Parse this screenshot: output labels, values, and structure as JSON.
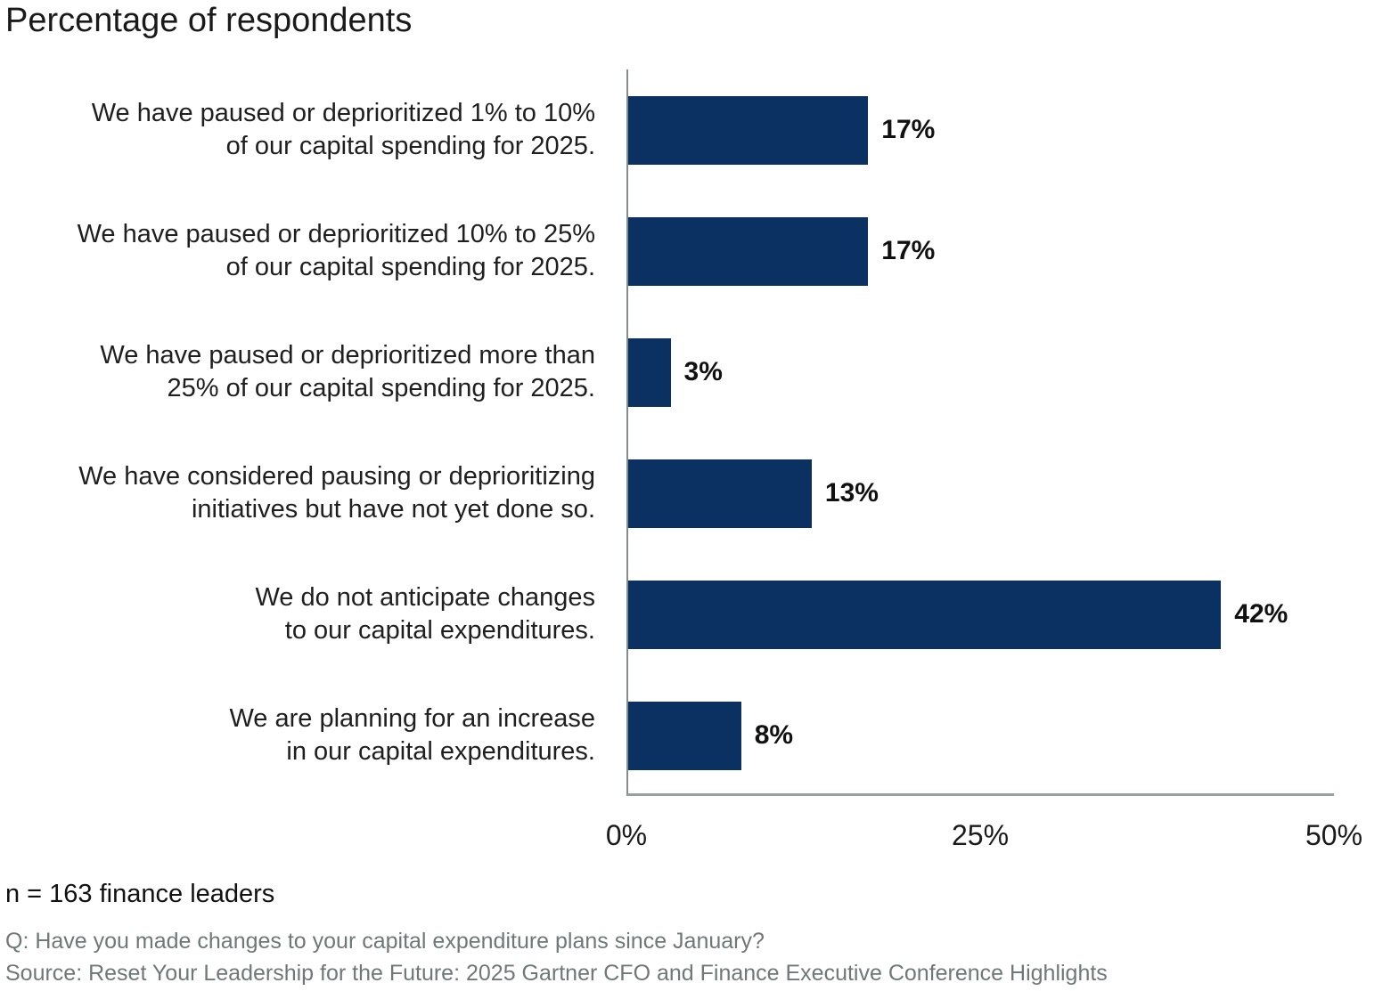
{
  "title": "Percentage of respondents",
  "colors": {
    "bar": "#0a3161",
    "axis": "#8e9696",
    "footnote_gray": "#6f7877",
    "text": "#1a1a1a"
  },
  "chart_data": {
    "type": "bar",
    "orientation": "horizontal",
    "title": "Percentage of respondents",
    "xlabel": "",
    "ylabel": "",
    "xlim": [
      0,
      50
    ],
    "grid": false,
    "legend": false,
    "categories": [
      "We have paused or deprioritized 1% to 10% of our capital spending for 2025.",
      "We have paused or deprioritized 10% to 25% of our capital spending for 2025.",
      "We have paused or deprioritized more than 25% of our capital spending for 2025.",
      "We have considered pausing or deprioritizing initiatives but have not yet done so.",
      "We do not anticipate changes to our capital expenditures.",
      "We are planning for an increase in our capital expenditures."
    ],
    "values": [
      17,
      17,
      3,
      13,
      42,
      8
    ],
    "rows": [
      {
        "label_lines": [
          "We have paused or deprioritized 1% to 10%",
          "of our capital spending for 2025."
        ],
        "value": 17,
        "value_label": "17%"
      },
      {
        "label_lines": [
          "We have paused or deprioritized 10% to 25%",
          "of our capital spending for 2025."
        ],
        "value": 17,
        "value_label": "17%"
      },
      {
        "label_lines": [
          "We have paused or deprioritized more than",
          "25% of our capital spending for 2025."
        ],
        "value": 3,
        "value_label": "3%"
      },
      {
        "label_lines": [
          "We have considered pausing or deprioritizing",
          "initiatives but have not yet done so."
        ],
        "value": 13,
        "value_label": "13%"
      },
      {
        "label_lines": [
          "We do not anticipate changes",
          "to our capital expenditures."
        ],
        "value": 42,
        "value_label": "42%"
      },
      {
        "label_lines": [
          "We are planning for an increase",
          "in our capital expenditures."
        ],
        "value": 8,
        "value_label": "8%"
      }
    ],
    "ticks": [
      {
        "value": 0,
        "label": "0%"
      },
      {
        "value": 25,
        "label": "25%"
      },
      {
        "value": 50,
        "label": "50%"
      }
    ]
  },
  "footer": {
    "sample": "n = 163 finance leaders",
    "question": "Q: Have you made changes to your capital expenditure plans since January?",
    "source": "Source: Reset Your Leadership for the Future: 2025 Gartner CFO and Finance Executive Conference Highlights"
  }
}
